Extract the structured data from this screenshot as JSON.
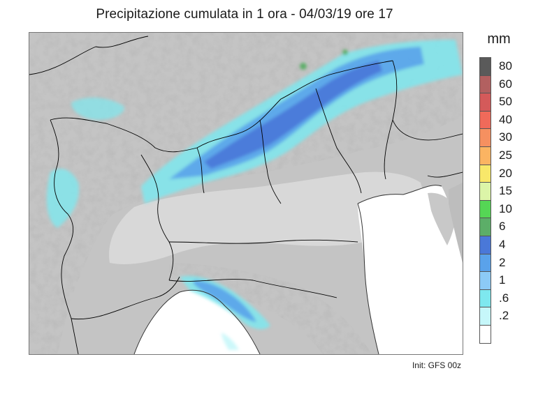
{
  "title": "Precipitazione cumulata in 1 ora - 04/03/19 ore 17",
  "unit": "mm",
  "footer": "Init: GFS 00z",
  "legend": [
    {
      "label": "80",
      "color": "#5a5a5a"
    },
    {
      "label": "60",
      "color": "#b26060"
    },
    {
      "label": "50",
      "color": "#d45a5a"
    },
    {
      "label": "40",
      "color": "#f06a5a"
    },
    {
      "label": "30",
      "color": "#f69060"
    },
    {
      "label": "25",
      "color": "#fbb462"
    },
    {
      "label": "20",
      "color": "#f8e86a"
    },
    {
      "label": "15",
      "color": "#dcf5a8"
    },
    {
      "label": "10",
      "color": "#55d655"
    },
    {
      "label": "6",
      "color": "#5cae68"
    },
    {
      "label": "4",
      "color": "#4a78d8"
    },
    {
      "label": "2",
      "color": "#5aa2ea"
    },
    {
      "label": "1",
      "color": "#8ccaf6"
    },
    {
      "label": ".6",
      "color": "#7ee8ef"
    },
    {
      "label": ".2",
      "color": "#c6f7fa"
    },
    {
      "label": "",
      "color": "#ffffff"
    }
  ]
}
